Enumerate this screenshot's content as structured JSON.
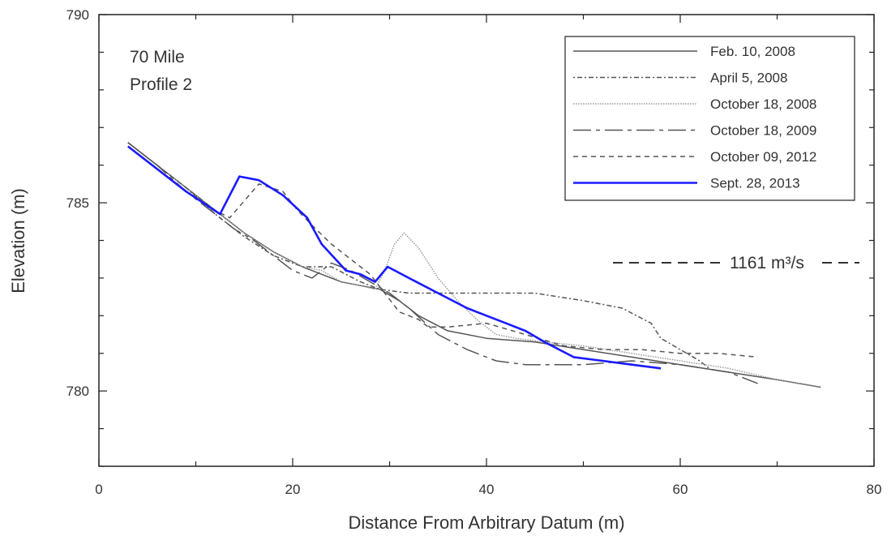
{
  "chart_data": {
    "type": "line",
    "title": "",
    "annotation_lines": [
      "70 Mile",
      "Profile 2"
    ],
    "xlabel": "Distance From Arbitrary Datum (m)",
    "ylabel": "Elevation (m)",
    "xlim": [
      0,
      80
    ],
    "ylim": [
      778,
      790
    ],
    "xticks": [
      0,
      20,
      40,
      60,
      80
    ],
    "yticks": [
      780,
      785,
      790
    ],
    "grid": false,
    "legend_position": "top-right",
    "discharge_label": "1161 m³/s",
    "series": [
      {
        "name": "Feb. 10, 2008",
        "color": "#555555",
        "dash": "solid",
        "x": [
          3,
          6,
          9,
          12,
          15,
          18,
          21,
          23,
          25,
          27,
          29,
          31,
          33,
          36,
          40,
          45,
          50,
          55,
          60,
          65,
          70,
          74.5
        ],
        "y": [
          786.6,
          786.0,
          785.4,
          784.8,
          784.2,
          783.7,
          783.3,
          783.1,
          782.9,
          782.8,
          782.7,
          782.4,
          782.0,
          781.6,
          781.4,
          781.3,
          781.1,
          780.9,
          780.7,
          780.5,
          780.3,
          780.1
        ]
      },
      {
        "name": "April 5, 2008",
        "color": "#555555",
        "dash": "2 3 6 3",
        "x": [
          3,
          6,
          9,
          12,
          15,
          18,
          21,
          24,
          27,
          29,
          32,
          36,
          40,
          45,
          50,
          54,
          57,
          58,
          60,
          62,
          63
        ],
        "y": [
          786.6,
          786.0,
          785.4,
          784.7,
          784.1,
          783.6,
          783.3,
          783.3,
          782.9,
          782.7,
          782.6,
          782.6,
          782.6,
          782.6,
          782.4,
          782.2,
          781.8,
          781.4,
          781.1,
          780.8,
          780.6
        ]
      },
      {
        "name": "October 18, 2008",
        "color": "#999999",
        "dash": "1.5 1.5",
        "x": [
          3,
          6,
          9,
          12,
          15,
          18,
          21,
          23,
          25,
          27,
          28.5,
          29.5,
          30.5,
          31.5,
          33,
          35,
          37,
          39,
          41,
          43,
          46,
          50,
          55,
          60,
          65,
          70,
          74.5
        ],
        "y": [
          786.6,
          786.0,
          785.4,
          784.8,
          784.2,
          783.7,
          783.3,
          783.2,
          782.9,
          782.8,
          782.7,
          783.2,
          783.9,
          784.2,
          783.8,
          783.0,
          782.4,
          781.9,
          781.5,
          781.4,
          781.3,
          781.2,
          781.0,
          780.8,
          780.6,
          780.3,
          780.1
        ]
      },
      {
        "name": "October 18, 2009",
        "color": "#555555",
        "dash": "22 6 5 6",
        "x": [
          3,
          6,
          9,
          12,
          14,
          16,
          18,
          20,
          22,
          24,
          26,
          28,
          30,
          32,
          35,
          38,
          41,
          44,
          47,
          50,
          55,
          60,
          65,
          68
        ],
        "y": [
          786.6,
          786.0,
          785.3,
          784.7,
          784.3,
          784.0,
          783.6,
          783.2,
          783.0,
          783.4,
          783.2,
          782.9,
          782.6,
          782.2,
          781.5,
          781.1,
          780.8,
          780.7,
          780.7,
          780.7,
          780.8,
          780.7,
          780.5,
          780.2
        ]
      },
      {
        "name": "October 09, 2012",
        "color": "#555555",
        "dash": "6 5",
        "x": [
          3,
          6,
          9,
          12,
          13.5,
          16.5,
          19,
          20.5,
          22,
          24,
          26,
          28,
          29.5,
          31,
          33,
          34,
          36,
          40,
          44,
          48,
          52,
          56,
          60,
          64,
          68
        ],
        "y": [
          786.6,
          786.0,
          785.4,
          784.8,
          784.6,
          785.5,
          785.3,
          784.8,
          784.4,
          783.9,
          783.5,
          783.1,
          782.6,
          782.1,
          781.9,
          781.7,
          781.7,
          781.8,
          781.5,
          781.2,
          781.1,
          781.1,
          781.0,
          781.0,
          780.9
        ]
      },
      {
        "name": "Sept. 28, 2013",
        "color": "#1a1aff",
        "dash": "solid",
        "x": [
          3,
          6,
          9,
          12.5,
          14.5,
          16.5,
          19,
          21.5,
          23,
          25.5,
          27,
          28.5,
          29.8,
          32,
          35,
          38,
          40,
          42,
          44,
          46,
          49,
          52,
          55,
          58
        ],
        "y": [
          786.5,
          785.9,
          785.3,
          784.7,
          785.7,
          785.6,
          785.2,
          784.6,
          783.9,
          783.2,
          783.1,
          782.9,
          783.3,
          783.0,
          782.6,
          782.2,
          782.0,
          781.8,
          781.6,
          781.3,
          780.9,
          780.8,
          780.7,
          780.6
        ]
      }
    ]
  }
}
